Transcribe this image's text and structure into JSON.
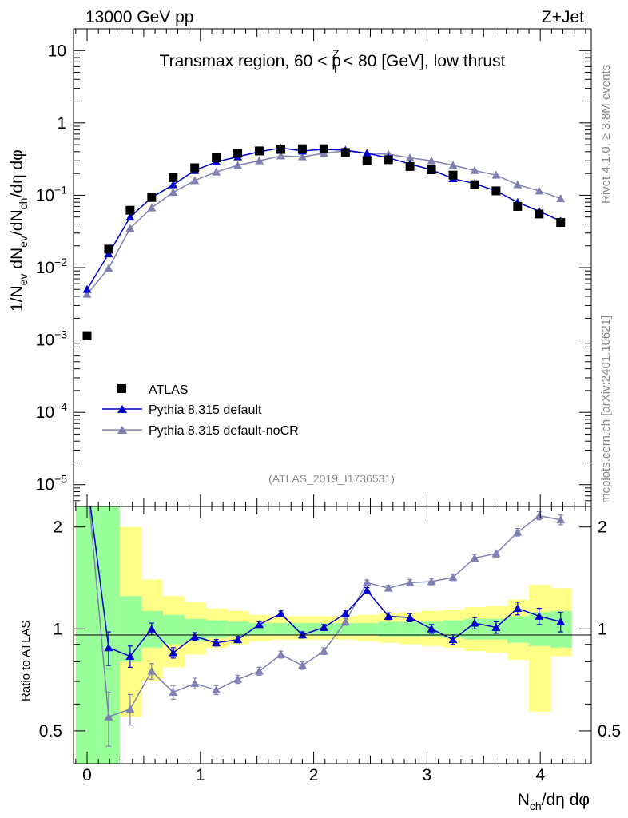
{
  "header": {
    "energy_label": "13000 GeV pp",
    "process_label": "Z+Jet",
    "title": "Transmax region, 60 < p_T^Z < 80 [GeV], low thrust",
    "title_parts": {
      "pre": "Transmax region, 60 < p",
      "sup": "Z",
      "sub": "T",
      "post": " < 80 [GeV], low thrust"
    },
    "watermark": "(ATLAS_2019_I1736531)",
    "side_label_top": "Rivet 4.1.0, ≥ 3.8M events",
    "side_label_bottom": "mcplots.cern.ch [arXiv:2401.10621]"
  },
  "axes": {
    "ylabel_main": "1/N_ev dN_ev/dN_ch/dη dφ",
    "ylabel_main_parts": {
      "a": "1/N",
      "a_sub": "ev",
      "b": " dN",
      "b_sub": "ev",
      "c": "/dN",
      "c_sub": "ch",
      "d": "/dη dφ"
    },
    "ylabel_ratio": "Ratio to ATLAS",
    "xlabel": "N_ch/dη dφ",
    "xlabel_parts": {
      "a": "N",
      "a_sub": "ch",
      "b": "/dη dφ"
    },
    "main_yticks": [
      {
        "base": "10",
        "exp": "",
        "plain": "10",
        "value": 10
      },
      {
        "base": "1",
        "exp": "",
        "plain": "1",
        "value": 1
      },
      {
        "base": "10",
        "exp": "−1",
        "value": 0.1
      },
      {
        "base": "10",
        "exp": "−2",
        "value": 0.01
      },
      {
        "base": "10",
        "exp": "−3",
        "value": 0.001
      },
      {
        "base": "10",
        "exp": "−4",
        "value": 0.0001
      },
      {
        "base": "10",
        "exp": "−5",
        "value": 1e-05
      }
    ],
    "ratio_yticks": [
      {
        "label": "2",
        "value": 2
      },
      {
        "label": "1",
        "value": 1
      },
      {
        "label": "0.5",
        "value": 0.5
      }
    ],
    "xticks": [
      {
        "label": "0",
        "value": 0
      },
      {
        "label": "1",
        "value": 1
      },
      {
        "label": "2",
        "value": 2
      },
      {
        "label": "3",
        "value": 3
      },
      {
        "label": "4",
        "value": 4
      }
    ]
  },
  "legend": {
    "atlas": "ATLAS",
    "pythia_default": "Pythia 8.315 default",
    "pythia_nocr": "Pythia 8.315 default-noCR"
  },
  "chart_data": {
    "type": "scatter",
    "xlim": [
      -0.12,
      4.45
    ],
    "ylim_main": [
      5e-06,
      20
    ],
    "ylim_ratio": [
      0.4,
      2.3
    ],
    "yscale_main": "log",
    "yscale_ratio": "log",
    "colors": {
      "atlas": "#000000",
      "pythia_default": "#0000cc",
      "pythia_nocr": "#8080b3",
      "band_inner": "#99ff99",
      "band_outer": "#ffff88"
    },
    "atlas": {
      "name": "ATLAS",
      "x": [
        0.0,
        0.19,
        0.38,
        0.57,
        0.76,
        0.95,
        1.14,
        1.33,
        1.52,
        1.71,
        1.9,
        2.09,
        2.28,
        2.47,
        2.66,
        2.85,
        3.04,
        3.23,
        3.42,
        3.61,
        3.8,
        3.99,
        4.18
      ],
      "y": [
        0.00115,
        0.018,
        0.062,
        0.093,
        0.175,
        0.24,
        0.33,
        0.38,
        0.41,
        0.43,
        0.44,
        0.44,
        0.39,
        0.3,
        0.31,
        0.25,
        0.225,
        0.19,
        0.14,
        0.115,
        0.07,
        0.055,
        0.042
      ]
    },
    "pythia_default": {
      "name": "Pythia 8.315 default",
      "x": [
        0.0,
        0.19,
        0.38,
        0.57,
        0.76,
        0.95,
        1.14,
        1.33,
        1.52,
        1.71,
        1.9,
        2.09,
        2.28,
        2.47,
        2.66,
        2.85,
        3.04,
        3.23,
        3.42,
        3.61,
        3.8,
        3.99,
        4.18
      ],
      "y": [
        0.005,
        0.0155,
        0.05,
        0.093,
        0.14,
        0.22,
        0.29,
        0.34,
        0.4,
        0.45,
        0.41,
        0.43,
        0.42,
        0.38,
        0.33,
        0.27,
        0.225,
        0.17,
        0.145,
        0.115,
        0.08,
        0.06,
        0.044
      ],
      "ratio": [
        3.0,
        0.88,
        0.83,
        1.0,
        0.85,
        0.95,
        0.91,
        0.93,
        1.03,
        1.11,
        0.96,
        1.01,
        1.11,
        1.3,
        1.09,
        1.08,
        1.0,
        0.93,
        1.04,
        1.01,
        1.15,
        1.09,
        1.05
      ],
      "ratio_err": [
        0.3,
        0.1,
        0.06,
        0.04,
        0.03,
        0.025,
        0.02,
        0.02,
        0.02,
        0.02,
        0.02,
        0.02,
        0.025,
        0.025,
        0.025,
        0.03,
        0.03,
        0.03,
        0.04,
        0.04,
        0.05,
        0.06,
        0.07
      ]
    },
    "pythia_nocr": {
      "name": "Pythia 8.315 default-noCR",
      "x": [
        0.0,
        0.19,
        0.38,
        0.57,
        0.76,
        0.95,
        1.14,
        1.33,
        1.52,
        1.71,
        1.9,
        2.09,
        2.28,
        2.47,
        2.66,
        2.85,
        3.04,
        3.23,
        3.42,
        3.61,
        3.8,
        3.99,
        4.18
      ],
      "y": [
        0.0043,
        0.0098,
        0.035,
        0.067,
        0.11,
        0.16,
        0.21,
        0.26,
        0.3,
        0.35,
        0.34,
        0.38,
        0.41,
        0.38,
        0.37,
        0.33,
        0.3,
        0.26,
        0.22,
        0.19,
        0.14,
        0.115,
        0.09
      ],
      "ratio": [
        3.0,
        0.55,
        0.58,
        0.75,
        0.65,
        0.69,
        0.66,
        0.71,
        0.75,
        0.84,
        0.78,
        0.86,
        1.05,
        1.37,
        1.32,
        1.37,
        1.38,
        1.42,
        1.62,
        1.67,
        1.93,
        2.16,
        2.1
      ],
      "ratio_err": [
        0.3,
        0.1,
        0.06,
        0.04,
        0.03,
        0.025,
        0.02,
        0.02,
        0.02,
        0.02,
        0.02,
        0.02,
        0.025,
        0.025,
        0.025,
        0.03,
        0.03,
        0.03,
        0.04,
        0.04,
        0.05,
        0.06,
        0.07
      ]
    },
    "uncertainty_bands": {
      "edges": [
        -0.1,
        0.1,
        0.29,
        0.48,
        0.67,
        0.86,
        1.05,
        1.24,
        1.43,
        1.62,
        1.81,
        2.0,
        2.19,
        2.38,
        2.57,
        2.76,
        2.95,
        3.14,
        3.33,
        3.52,
        3.71,
        3.9,
        4.09,
        4.28
      ],
      "inner_lo": [
        0.1,
        0.1,
        0.8,
        0.88,
        0.9,
        0.92,
        0.94,
        0.95,
        0.96,
        0.96,
        0.96,
        0.96,
        0.96,
        0.96,
        0.95,
        0.95,
        0.95,
        0.94,
        0.93,
        0.93,
        0.91,
        0.89,
        0.88
      ],
      "inner_hi": [
        2.5,
        2.5,
        1.25,
        1.13,
        1.1,
        1.07,
        1.06,
        1.05,
        1.04,
        1.04,
        1.04,
        1.04,
        1.04,
        1.04,
        1.05,
        1.05,
        1.05,
        1.06,
        1.07,
        1.07,
        1.09,
        1.12,
        1.13
      ],
      "outer_lo": [
        0.1,
        0.1,
        0.55,
        0.7,
        0.77,
        0.84,
        0.88,
        0.9,
        0.92,
        0.93,
        0.93,
        0.93,
        0.93,
        0.92,
        0.91,
        0.9,
        0.89,
        0.88,
        0.86,
        0.85,
        0.81,
        0.57,
        0.83
      ],
      "outer_hi": [
        2.5,
        2.5,
        2.0,
        1.4,
        1.25,
        1.2,
        1.15,
        1.13,
        1.1,
        1.09,
        1.09,
        1.09,
        1.09,
        1.1,
        1.11,
        1.12,
        1.13,
        1.14,
        1.16,
        1.17,
        1.22,
        1.35,
        1.32
      ]
    }
  }
}
